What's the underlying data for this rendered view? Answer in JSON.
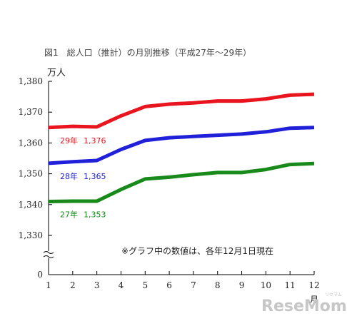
{
  "chart_data": {
    "type": "line",
    "title": "図1　総人口（推計）の月別推移（平成27年～29年）",
    "ylabel": "万人",
    "xlabel": "月",
    "note": "※グラフ中の数値は、各年12月1日現在",
    "x": [
      1,
      2,
      3,
      4,
      5,
      6,
      7,
      8,
      9,
      10,
      11,
      12
    ],
    "x_tick_labels": [
      "1",
      "2",
      "3",
      "4",
      "5",
      "6",
      "7",
      "8",
      "9",
      "10",
      "11",
      "12"
    ],
    "ylim": [
      1330,
      1380
    ],
    "y_ticks": [
      1380,
      1370,
      1360,
      1350,
      1340,
      1330
    ],
    "y_tick_labels": [
      "1,380",
      "1,370",
      "1,360",
      "1,350",
      "1,340",
      "1,330"
    ],
    "y_zero_label": "0",
    "axis_break": true,
    "grid": false,
    "series": [
      {
        "name": "29年",
        "value_label": "1,376",
        "color": "#e8141e",
        "values": [
          1365.0,
          1365.4,
          1365.2,
          1368.8,
          1371.8,
          1372.6,
          1373.0,
          1373.6,
          1373.6,
          1374.3,
          1375.5,
          1375.8
        ]
      },
      {
        "name": "28年",
        "value_label": "1,365",
        "color": "#2020d8",
        "values": [
          1353.4,
          1353.9,
          1354.3,
          1357.9,
          1360.8,
          1361.7,
          1362.1,
          1362.5,
          1362.9,
          1363.6,
          1364.8,
          1365.0
        ]
      },
      {
        "name": "27年",
        "value_label": "1,353",
        "color": "#188a1a",
        "values": [
          1341.0,
          1341.1,
          1341.1,
          1344.9,
          1348.3,
          1348.9,
          1349.7,
          1350.4,
          1350.4,
          1351.4,
          1353.0,
          1353.3
        ]
      }
    ]
  },
  "watermark": {
    "text": "ReseMom",
    "sub": "リセマム"
  }
}
